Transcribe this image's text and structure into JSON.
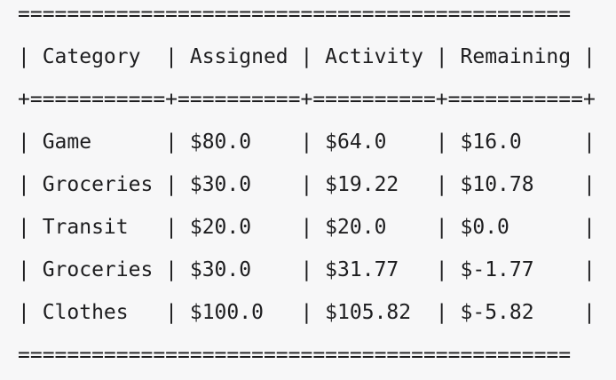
{
  "border_top": "=============================================",
  "header_row": "| Category  | Assigned | Activity | Remaining |",
  "header_sep": "+===========+==========+==========+===========+",
  "rows": [
    "| Game      | $80.0    | $64.0    | $16.0     |",
    "| Groceries | $30.0    | $19.22   | $10.78    |",
    "| Transit   | $20.0    | $20.0    | $0.0      |",
    "| Groceries | $30.0    | $31.77   | $-1.77    |",
    "| Clothes   | $100.0   | $105.82  | $-5.82    |"
  ],
  "border_bottom": "============================================="
}
